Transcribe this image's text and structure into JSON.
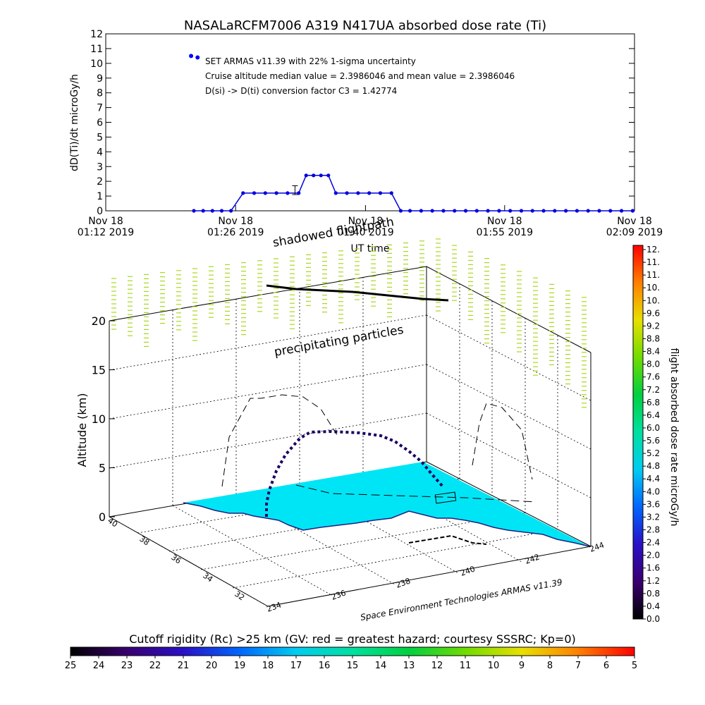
{
  "chart_data": [
    {
      "type": "scatter",
      "title": "NASALaRCFM7006   A319 N417UA absorbed dose rate (Ti)",
      "ylabel": "dD(Ti)/dt microGy/h",
      "xlabel": "UT time",
      "ylim": [
        0,
        12
      ],
      "yticks": [
        "0",
        "1",
        "2",
        "3",
        "4",
        "5",
        "6",
        "7",
        "8",
        "9",
        "10",
        "11",
        "12"
      ],
      "xlim_minutes": [
        0,
        57
      ],
      "xticks": [
        {
          "t": 0,
          "line1": "Nov 18",
          "line2": "01:12 2019"
        },
        {
          "t": 14,
          "line1": "Nov 18",
          "line2": "01:26 2019"
        },
        {
          "t": 28,
          "line1": "Nov 18",
          "line2": "01:40 2019"
        },
        {
          "t": 43,
          "line1": "Nov 18",
          "line2": "01:55 2019"
        },
        {
          "t": 57,
          "line1": "Nov 18",
          "line2": "02:09 2019"
        }
      ],
      "annotations": [
        "SET ARMAS v11.39 with 22% 1-sigma uncertainty",
        "Cruise altitude median value = 2.3986046 and mean value = 2.3986046",
        "D(si) -> D(ti) conversion factor C3 = 1.42774"
      ],
      "outlier_points": [
        {
          "t": 9.2,
          "y": 10.5
        },
        {
          "t": 9.9,
          "y": 10.4
        }
      ],
      "series": [
        {
          "t": [
            9.5,
            10.5,
            11.5,
            12.5,
            13.5,
            14.8,
            16.0,
            17.2,
            18.4,
            19.6,
            20.8,
            21.6,
            22.4,
            23.2,
            24.0,
            24.8,
            26.0,
            27.2,
            28.4,
            29.6,
            30.8,
            31.8,
            32.8,
            34.0,
            35.2,
            36.4,
            37.6,
            38.8,
            40.0,
            41.2,
            42.4,
            43.6,
            44.8,
            46.0,
            47.2,
            48.4,
            49.6,
            50.8,
            52.0,
            53.2,
            54.4,
            55.6,
            56.8
          ],
          "y": [
            0,
            0,
            0,
            0,
            0,
            1.2,
            1.2,
            1.2,
            1.2,
            1.2,
            1.2,
            2.4,
            2.4,
            2.4,
            2.4,
            1.2,
            1.2,
            1.2,
            1.2,
            1.2,
            1.2,
            0,
            0,
            0,
            0,
            0,
            0,
            0,
            0,
            0,
            0,
            0,
            0,
            0,
            0,
            0,
            0,
            0,
            0,
            0,
            0,
            0,
            0
          ]
        }
      ],
      "error_bar": {
        "t": 20.4,
        "y": 1.4,
        "low": 1.1,
        "high": 1.7
      }
    },
    {
      "type": "3d-trajectory",
      "zlabel": "Altitude (km)",
      "zticks": [
        "0",
        "5",
        "10",
        "15",
        "20"
      ],
      "left_axis_ticks": [
        "40",
        "38",
        "36",
        "34",
        "32"
      ],
      "right_axis_ticks": [
        "234",
        "236",
        "238",
        "240",
        "242",
        "244"
      ],
      "credit": "Space Environment Technologies ARMAS v11.39",
      "labels": {
        "shadowed": "shadowed flightpath",
        "precip": "precipitating particles"
      }
    },
    {
      "type": "colorbar",
      "label": "flight absorbed dose rate microGy/h",
      "ticks": [
        "12.",
        "11.",
        "11.",
        "10.",
        "10.",
        "9.6",
        "9.2",
        "8.8",
        "8.4",
        "8.0",
        "7.6",
        "7.2",
        "6.8",
        "6.4",
        "6.0",
        "5.6",
        "5.2",
        "4.8",
        "4.4",
        "4.0",
        "3.6",
        "3.2",
        "2.8",
        "2.4",
        "2.0",
        "1.6",
        "1.2",
        "0.8",
        "0.4",
        "0.0"
      ]
    },
    {
      "type": "colorbar",
      "label": "Cutoff rigidity (Rc) >25 km (GV: red = greatest hazard; courtesy SSSRC; Kp=0)",
      "ticks": [
        "25",
        "24",
        "23",
        "22",
        "21",
        "20",
        "19",
        "18",
        "17",
        "16",
        "15",
        "14",
        "13",
        "12",
        "11",
        "10",
        "9",
        "8",
        "7",
        "6",
        "5"
      ]
    }
  ],
  "colors": {
    "dose_points": "#0000dd",
    "surface": "#00e5f5",
    "precip": "#a6d81e",
    "outlier": "#0000ff"
  }
}
